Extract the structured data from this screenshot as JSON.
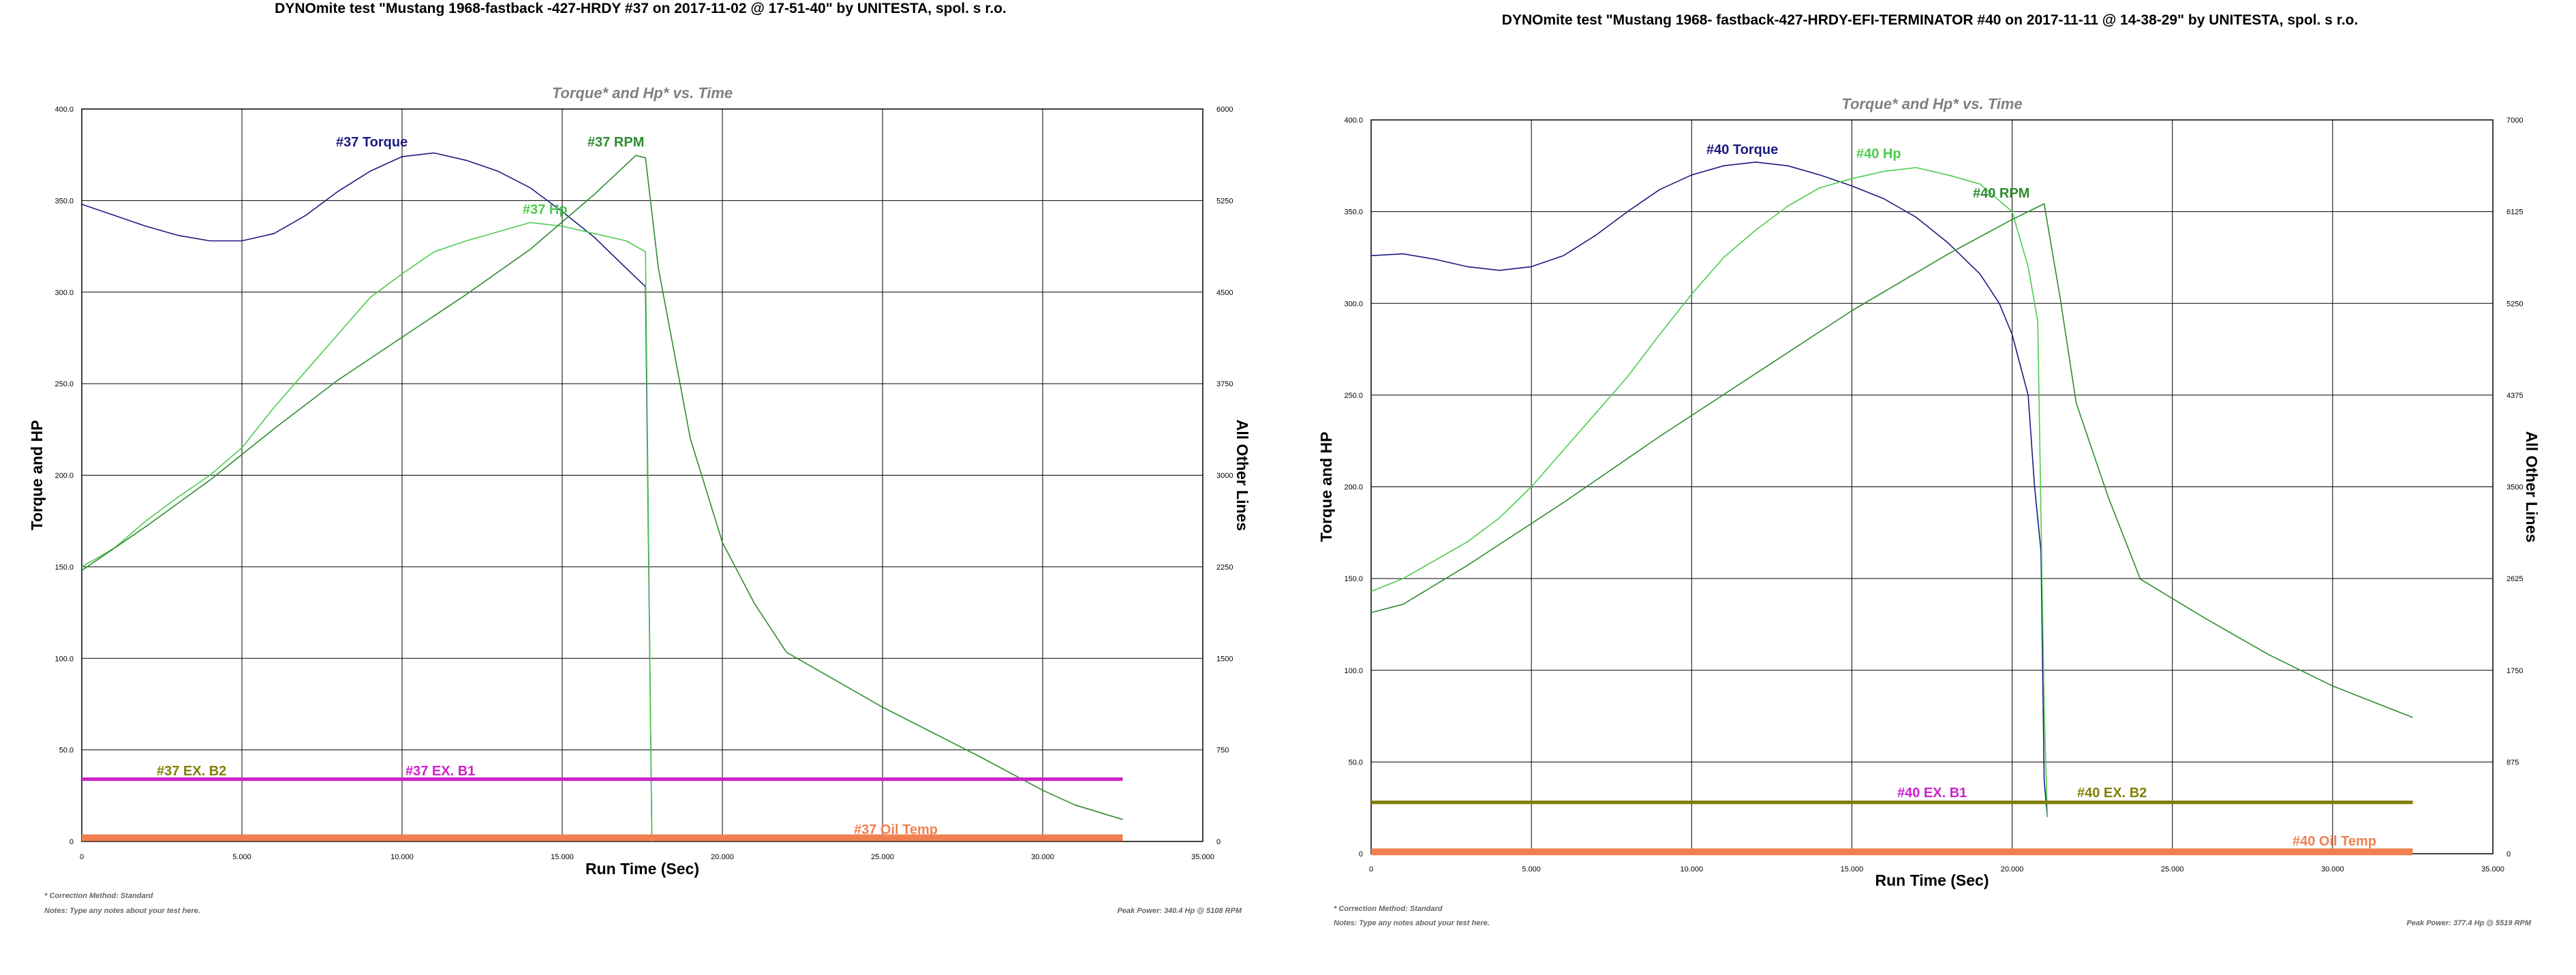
{
  "chart_data": [
    {
      "type": "line",
      "title": "DYNOmite test \"Mustang 1968-fastback -427-HRDY #37 on 2017-11-02 @ 17-51-40\" by UNITESTA, spol. s r.o.",
      "subtitle": "Torque* and Hp* vs. Time",
      "xlabel": "Run Time (Sec)",
      "ylabel": "Torque and HP",
      "y2label": "All Other Lines",
      "xlim": [
        0,
        35
      ],
      "ylim": [
        0,
        400
      ],
      "y2lim": [
        0,
        6000
      ],
      "x_ticks": [
        "0",
        "5.000",
        "10.000",
        "15.000",
        "20.000",
        "25.000",
        "30.000",
        "35.000"
      ],
      "y_ticks": [
        "0",
        "50.0",
        "100.0",
        "150.0",
        "200.0",
        "250.0",
        "300.0",
        "350.0",
        "400.0"
      ],
      "y2_ticks": [
        "0",
        "750",
        "1500",
        "2250",
        "3000",
        "3750",
        "4500",
        "5250",
        "6000"
      ],
      "grid": true,
      "series": [
        {
          "name": "#37 Torque",
          "axis": "left",
          "color": "#1a1a80",
          "x": [
            0,
            1,
            2,
            3,
            4,
            5,
            6,
            7,
            8,
            9,
            10,
            11,
            12,
            13,
            14,
            15,
            16,
            17,
            17.6,
            17.8
          ],
          "y": [
            348,
            342,
            336,
            331,
            328,
            328,
            332,
            342,
            355,
            366,
            374,
            376,
            372,
            366,
            357,
            344,
            330,
            313,
            303,
            0
          ]
        },
        {
          "name": "#37 Hp",
          "axis": "left",
          "color": "#4ccc4c",
          "x": [
            0,
            1,
            2,
            3,
            4,
            5,
            6,
            7,
            8,
            9,
            10,
            11,
            12,
            13,
            14,
            15,
            16,
            17,
            17.6,
            17.8
          ],
          "y": [
            150,
            160,
            175,
            188,
            200,
            215,
            237,
            257,
            277,
            297,
            310,
            322,
            328,
            333,
            338,
            336,
            332,
            328,
            322,
            0
          ]
        },
        {
          "name": "#37 RPM",
          "axis": "right",
          "color": "#2e8b2e",
          "x": [
            0,
            2,
            4,
            6,
            8,
            10,
            12,
            14,
            16,
            17.3,
            17.6,
            18,
            19,
            20,
            21,
            22,
            25,
            28,
            30,
            31,
            32.5
          ],
          "y": [
            2220,
            2580,
            2960,
            3380,
            3780,
            4130,
            4480,
            4850,
            5300,
            5620,
            5600,
            4700,
            3300,
            2450,
            1950,
            1550,
            1100,
            700,
            420,
            300,
            180
          ]
        },
        {
          "name": "#37 EX. B2",
          "axis": "left",
          "color": "#808000",
          "x": [
            0,
            32.5
          ],
          "y": [
            34,
            34
          ]
        },
        {
          "name": "#37 EX. B1",
          "axis": "left",
          "color": "#cc22cc",
          "x": [
            0,
            32.5
          ],
          "y": [
            34,
            34
          ]
        },
        {
          "name": "#37 Oil Temp",
          "axis": "left",
          "color": "#f08050",
          "x": [
            0,
            32.5
          ],
          "y": [
            2,
            2
          ]
        }
      ],
      "notes": [
        "* Correction Method: Standard",
        "Notes: Type any notes about your test here."
      ],
      "peak_power": "Peak Power: 340.4 Hp @ 5108 RPM"
    },
    {
      "type": "line",
      "title": "DYNOmite test \"Mustang 1968- fastback-427-HRDY-EFI-TERMINATOR #40 on 2017-11-11 @ 14-38-29\" by UNITESTA, spol. s r.o.",
      "subtitle": "Torque* and Hp* vs. Time",
      "xlabel": "Run Time (Sec)",
      "ylabel": "Torque and HP",
      "y2label": "All Other Lines",
      "xlim": [
        0,
        35
      ],
      "ylim": [
        0,
        400
      ],
      "y2lim": [
        0,
        7000
      ],
      "x_ticks": [
        "0",
        "5.000",
        "10.000",
        "15.000",
        "20.000",
        "25.000",
        "30.000",
        "35.000"
      ],
      "y_ticks": [
        "0",
        "50.0",
        "100.0",
        "150.0",
        "200.0",
        "250.0",
        "300.0",
        "350.0",
        "400.0"
      ],
      "y2_ticks": [
        "0",
        "875",
        "1750",
        "2625",
        "3500",
        "4375",
        "5250",
        "6125",
        "7000"
      ],
      "grid": true,
      "series": [
        {
          "name": "#40 Torque",
          "axis": "left",
          "color": "#1a1a80",
          "x": [
            0,
            1,
            2,
            3,
            4,
            5,
            6,
            7,
            8,
            9,
            10,
            11,
            12,
            13,
            14,
            15,
            16,
            17,
            18,
            19,
            19.6,
            20,
            20.5,
            20.7,
            20.9,
            21,
            21.1
          ],
          "y": [
            326,
            327,
            324,
            320,
            318,
            320,
            326,
            337,
            350,
            362,
            370,
            375,
            377,
            375,
            370,
            364,
            357,
            347,
            333,
            316,
            300,
            283,
            250,
            200,
            165,
            40,
            20
          ]
        },
        {
          "name": "#40 Hp",
          "axis": "left",
          "color": "#4ccc4c",
          "x": [
            0,
            1,
            2,
            3,
            4,
            5,
            6,
            7,
            8,
            9,
            10,
            11,
            12,
            13,
            14,
            15,
            16,
            17,
            18,
            19,
            20,
            20.5,
            20.8,
            21,
            21.1
          ],
          "y": [
            143,
            150,
            160,
            170,
            183,
            200,
            220,
            240,
            260,
            283,
            305,
            325,
            340,
            353,
            363,
            368,
            372,
            374,
            370,
            365,
            350,
            320,
            290,
            80,
            20
          ]
        },
        {
          "name": "#40 RPM",
          "axis": "right",
          "color": "#2e8b2e",
          "x": [
            0,
            1,
            3,
            6,
            9,
            12,
            15,
            18,
            20,
            21,
            21.5,
            22,
            23,
            24,
            26,
            28,
            30,
            32.5
          ],
          "y": [
            2300,
            2380,
            2750,
            3350,
            3980,
            4580,
            5180,
            5720,
            6050,
            6200,
            5300,
            4300,
            3400,
            2620,
            2250,
            1900,
            1600,
            1300
          ]
        },
        {
          "name": "#40 EX. B1",
          "axis": "left",
          "color": "#cc22cc",
          "x": [
            0,
            32.5
          ],
          "y": [
            28,
            28
          ]
        },
        {
          "name": "#40 EX. B2",
          "axis": "left",
          "color": "#808000",
          "x": [
            0,
            32.5
          ],
          "y": [
            28,
            28
          ]
        },
        {
          "name": "#40 Oil Temp",
          "axis": "left",
          "color": "#f08050",
          "x": [
            0,
            32.5
          ],
          "y": [
            1,
            1
          ]
        }
      ],
      "notes": [
        "* Correction Method: Standard",
        "Notes: Type any notes about your test here."
      ],
      "peak_power": "Peak Power: 377.4 Hp @ 5519 RPM"
    }
  ]
}
